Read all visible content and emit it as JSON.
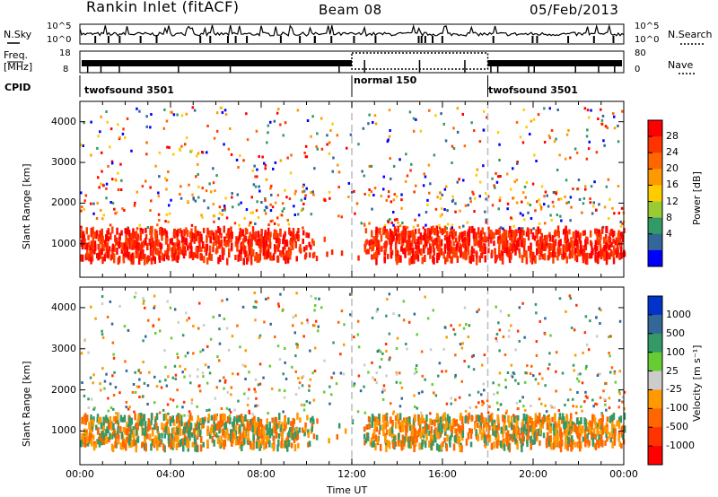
{
  "header": {
    "station": "Rankin Inlet (fitACF)",
    "beam": "Beam 08",
    "date": "05/Feb/2013"
  },
  "top_labels": {
    "nsky": "N.Sky",
    "nsearch": "N.Search",
    "freq": "Freq.",
    "freq_unit": "[MHz]",
    "nave": "Nave",
    "cpid": "CPID",
    "noise_ticks": [
      "10^5",
      "10^0"
    ],
    "freq_ticks": [
      "18",
      "8"
    ],
    "nave_ticks": [
      "80",
      "0"
    ]
  },
  "cpid_segments": [
    {
      "label": "twofsound 3501",
      "start": "00:00"
    },
    {
      "label": "normal 150",
      "start": "12:00"
    },
    {
      "label": "twofsound 3501",
      "start": "18:00"
    }
  ],
  "chart_data": [
    {
      "type": "heatmap",
      "panel": "power",
      "xlabel": "",
      "ylabel": "Slant Range [km]",
      "x_range": [
        "00:00",
        "00:00"
      ],
      "ylim": [
        180,
        4500
      ],
      "y_ticks": [
        1000,
        2000,
        3000,
        4000
      ],
      "colorbar": {
        "label": "Power [dB]",
        "ticks": [
          28,
          24,
          20,
          16,
          12,
          8,
          4
        ],
        "colors": [
          "#ff0000",
          "#ff3300",
          "#ff6600",
          "#ff9900",
          "#ffcc00",
          "#99cc33",
          "#339966",
          "#336699",
          "#0000ff"
        ]
      }
    },
    {
      "type": "heatmap",
      "panel": "velocity",
      "xlabel": "Time UT",
      "ylabel": "Slant Range [km]",
      "x_range": [
        "00:00",
        "00:00"
      ],
      "x_ticks": [
        "00:00",
        "04:00",
        "08:00",
        "12:00",
        "16:00",
        "20:00",
        "00:00"
      ],
      "ylim": [
        180,
        4500
      ],
      "y_ticks": [
        1000,
        2000,
        3000,
        4000
      ],
      "colorbar": {
        "label": "Velocity [m s⁻¹]",
        "ticks": [
          1000,
          500,
          100,
          25,
          -25,
          -100,
          -500,
          -1000
        ],
        "colors": [
          "#0033cc",
          "#336699",
          "#339966",
          "#66cc33",
          "#cccccc",
          "#ff9900",
          "#ff6600",
          "#ff3300",
          "#ff0000"
        ]
      }
    }
  ]
}
